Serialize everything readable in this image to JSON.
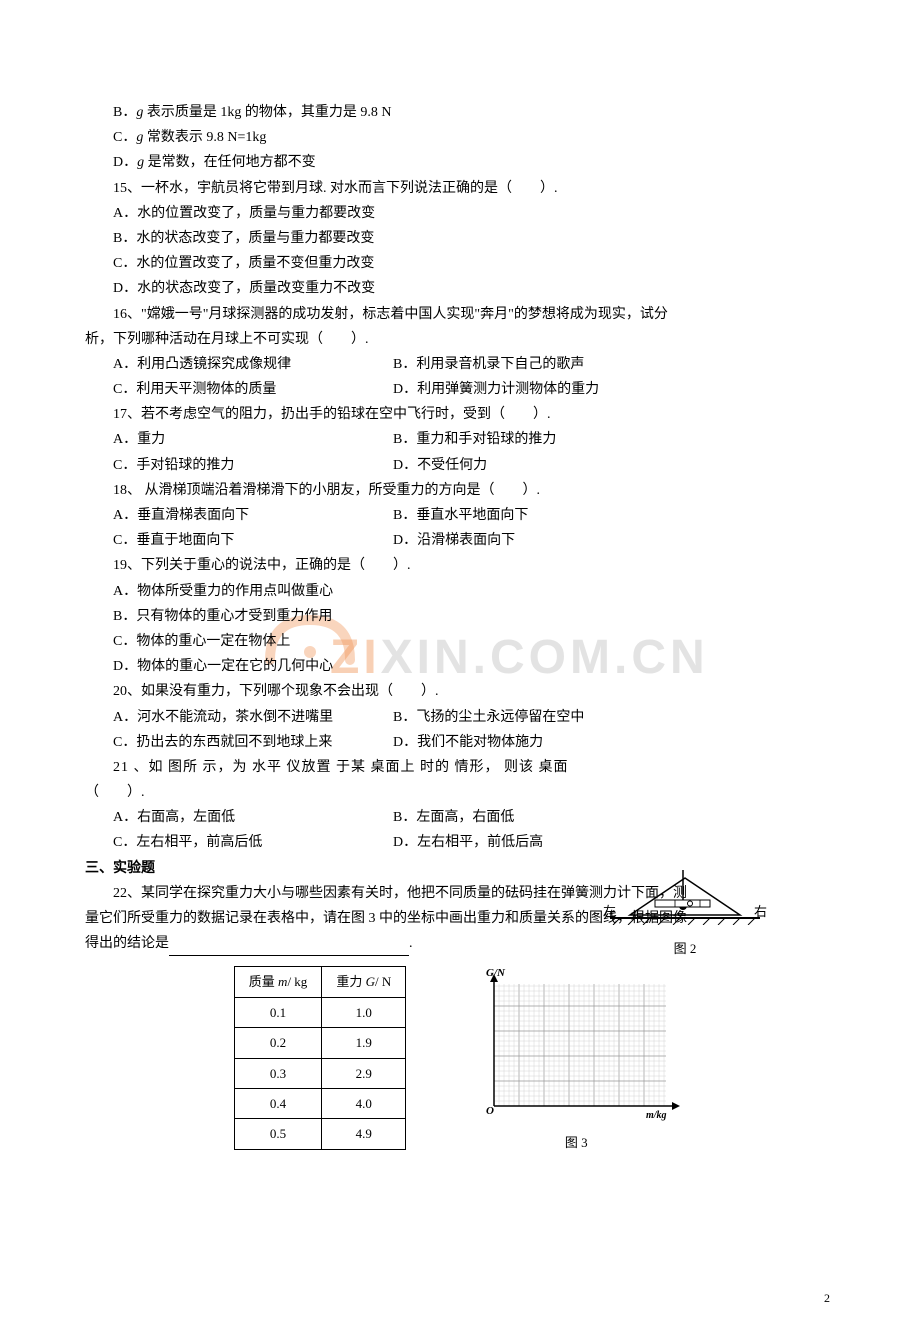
{
  "lines": {
    "l1": "B．",
    "l1b": " 表示质量是 1kg 的物体，其重力是 9.8 N",
    "l2": "C．",
    "l2b": " 常数表示 9.8 N=1kg",
    "l3": "D．",
    "l3b": " 是常数，在任何地方都不变",
    "g": "g",
    "q15": "15、一杯水，宇航员将它带到月球. 对水而言下列说法正确的是（　　）.",
    "q15a": "A．水的位置改变了，质量与重力都要改变",
    "q15b": "B．水的状态改变了，质量与重力都要改变",
    "q15c": "C．水的位置改变了，质量不变但重力改变",
    "q15d": "D．水的状态改变了，质量改变重力不改变",
    "q16": "16、\"嫦娥一号\"月球探测器的成功发射，标志着中国人实现\"奔月\"的梦想将成为现实，试分",
    "q16b": "析，下列哪种活动在月球上不可实现（　　）.",
    "q16A": "A．利用凸透镜探究成像规律",
    "q16B": "B．利用录音机录下自己的歌声",
    "q16C": "C．利用天平测物体的质量",
    "q16D": "D．利用弹簧测力计测物体的重力",
    "q17": "17、若不考虑空气的阻力，扔出手的铅球在空中飞行时，受到（　　）.",
    "q17A": "A．重力",
    "q17B": "B．重力和手对铅球的推力",
    "q17C": "C．手对铅球的推力",
    "q17D": "D．不受任何力",
    "q18": "18、 从滑梯顶端沿着滑梯滑下的小朋友，所受重力的方向是（　　）.",
    "q18A": "A．垂直滑梯表面向下",
    "q18B": "B．垂直水平地面向下",
    "q18C": "C．垂直于地面向下",
    "q18D": "D．沿滑梯表面向下",
    "q19": "19、下列关于重心的说法中，正确的是（　　）.",
    "q19A": "A．物体所受重力的作用点叫做重心",
    "q19B": "B．只有物体的重心才受到重力作用",
    "q19C": "C．物体的重心一定在物体上",
    "q19D": "D．物体的重心一定在它的几何中心",
    "q20": "20、如果没有重力，下列哪个现象不会出现（　　）.",
    "q20A": "A．河水不能流动，茶水倒不进嘴里",
    "q20B": "B．飞扬的尘土永远停留在空中",
    "q20C": "C．扔出去的东西就回不到地球上来",
    "q20D": "D．我们不能对物体施力",
    "q21": "21 、如 图所 示，为 水平 仪放置 于某 桌面上 时的 情形， 则该 桌面",
    "q21b": "（　　）.",
    "q21A": "A．右面高，左面低",
    "q21B": "B．左面高，右面低",
    "q21C": "C．左右相平，前高后低",
    "q21D": "D．左右相平，前低后高",
    "sec3": "三、实验题",
    "q22a": "22、某同学在探究重力大小与哪些因素有关时，他把不同质量的砝码挂在弹簧测力计下面，测",
    "q22b": "量它们所受重力的数据记录在表格中，请在图 3 中的坐标中画出重力和质量关系的图线，根据图像",
    "q22c": "得出的结论是",
    "q22d": "."
  },
  "table": {
    "col1_header": "质量 m/ kg",
    "col2_header": "重力 G/ N",
    "rows": [
      [
        "0.1",
        "1.0"
      ],
      [
        "0.2",
        "1.9"
      ],
      [
        "0.3",
        "2.9"
      ],
      [
        "0.4",
        "4.0"
      ],
      [
        "0.5",
        "4.9"
      ]
    ],
    "italic_m": "m",
    "italic_G": "G"
  },
  "figure2": {
    "left_label": "左",
    "right_label": "右",
    "caption": "图 2"
  },
  "figure3": {
    "y_label": "G/N",
    "x_label": "m/kg",
    "caption": "图 3"
  },
  "watermark": {
    "text1": "ZI",
    "text2": "XIN.COM.CN"
  },
  "page_number": "2"
}
